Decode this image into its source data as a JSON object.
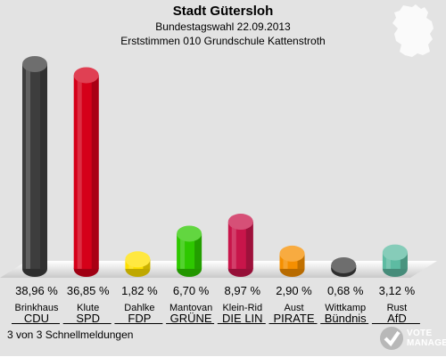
{
  "header": {
    "title": "Stadt Gütersloh",
    "subtitle": "Bundestagswahl 22.09.2013",
    "subtitle2": "Erststimmen 010 Grundschule Kattenstroth"
  },
  "footer": {
    "text": "3 von 3 Schnellmeldungen"
  },
  "logo": {
    "line1": "VOTE",
    "line2": "MANAGER"
  },
  "chart_data": {
    "type": "bar",
    "title": "Stadt Gütersloh",
    "categories": [
      "Brinkhaus",
      "Klute",
      "Dahlke",
      "Mantovan",
      "Klein-Rid",
      "Aust",
      "Wittkamp",
      "Rust"
    ],
    "parties": [
      "CDU",
      "SPD",
      "FDP",
      "GRÜNE",
      "DIE LIN",
      "PIRATE",
      "Bündnis",
      "AfD"
    ],
    "values": [
      38.96,
      36.85,
      1.82,
      6.7,
      8.97,
      2.9,
      0.68,
      3.12
    ],
    "value_labels": [
      "38,96 %",
      "36,85 %",
      "1,82 %",
      "6,70 %",
      "8,97 %",
      "2,90 %",
      "0,68 %",
      "3,12 %"
    ],
    "colors": [
      "#3d3d3d",
      "#d50019",
      "#ffe000",
      "#2ec800",
      "#c8154a",
      "#f58f00",
      "#3d3d3d",
      "#5dbba2"
    ],
    "ylim": [
      0,
      38.96
    ]
  }
}
